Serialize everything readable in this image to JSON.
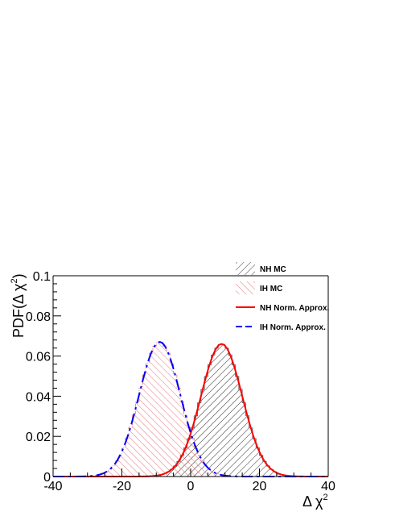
{
  "chart_data": {
    "type": "area",
    "x_range": [
      -40,
      40
    ],
    "ylim": [
      0,
      0.1
    ],
    "x_ticks": [
      -40,
      -20,
      0,
      20,
      40
    ],
    "x_tick_labels": [
      "-40",
      "-20",
      "0",
      "20",
      "40"
    ],
    "y_ticks": [
      0,
      0.02,
      0.04,
      0.06,
      0.08,
      0.1
    ],
    "y_tick_labels": [
      "0",
      "0.02",
      "0.04",
      "0.06",
      "0.08",
      "0.1"
    ],
    "xlabel": "Δ χ",
    "xlabel_sup": "2",
    "ylabel_prefix": "PDF(Δ χ",
    "ylabel_sup": "2",
    "ylabel_suffix": ")",
    "grid": false,
    "legend_position": "top-right",
    "series": [
      {
        "name": "NH MC",
        "style": "hatched-histogram",
        "mean": 9,
        "sigma": 6.0,
        "peak": 0.066,
        "color": "#000000",
        "hatch": "forward"
      },
      {
        "name": "IH MC",
        "style": "hatched-histogram",
        "mean": -9,
        "sigma": 6.0,
        "peak": 0.067,
        "color": "#e8787a",
        "hatch": "backward"
      },
      {
        "name": "NH Norm. Approx.",
        "style": "solid-line",
        "mean": 9,
        "sigma": 6.0,
        "peak": 0.066,
        "color": "#ff0000"
      },
      {
        "name": "IH Norm. Approx.",
        "style": "dashed-line",
        "mean": -9,
        "sigma": 6.0,
        "peak": 0.067,
        "color": "#0000ff"
      }
    ]
  }
}
